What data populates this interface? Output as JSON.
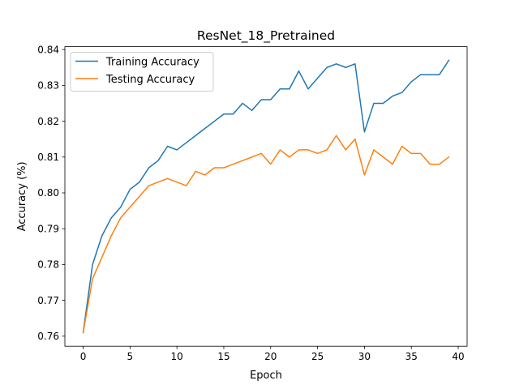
{
  "chart_data": {
    "type": "line",
    "title": "ResNet_18_Pretrained",
    "xlabel": "Epoch",
    "ylabel": "Accuracy (%)",
    "xlim": [
      -1.95,
      40.95
    ],
    "ylim": [
      0.7572,
      0.8408
    ],
    "xticks": [
      0,
      5,
      10,
      15,
      20,
      25,
      30,
      35,
      40
    ],
    "xtick_labels": [
      "0",
      "5",
      "10",
      "15",
      "20",
      "25",
      "30",
      "35",
      "40"
    ],
    "yticks": [
      0.76,
      0.77,
      0.78,
      0.79,
      0.8,
      0.81,
      0.82,
      0.83,
      0.84
    ],
    "ytick_labels": [
      "0.76",
      "0.77",
      "0.78",
      "0.79",
      "0.80",
      "0.81",
      "0.82",
      "0.83",
      "0.84"
    ],
    "grid": false,
    "legend_position": "top-left",
    "x": [
      0,
      1,
      2,
      3,
      4,
      5,
      6,
      7,
      8,
      9,
      10,
      11,
      12,
      13,
      14,
      15,
      16,
      17,
      18,
      19,
      20,
      21,
      22,
      23,
      24,
      25,
      26,
      27,
      28,
      29,
      30,
      31,
      32,
      33,
      34,
      35,
      36,
      37,
      38,
      39
    ],
    "series": [
      {
        "name": "Training Accuracy",
        "color": "#1f77b4",
        "values": [
          0.761,
          0.78,
          0.788,
          0.793,
          0.796,
          0.801,
          0.803,
          0.807,
          0.809,
          0.813,
          0.812,
          0.814,
          0.816,
          0.818,
          0.82,
          0.822,
          0.822,
          0.825,
          0.823,
          0.826,
          0.826,
          0.829,
          0.829,
          0.834,
          0.829,
          0.832,
          0.835,
          0.836,
          0.835,
          0.836,
          0.817,
          0.825,
          0.825,
          0.827,
          0.828,
          0.831,
          0.833,
          0.833,
          0.833,
          0.837
        ]
      },
      {
        "name": "Testing Accuracy",
        "color": "#ff7f0e",
        "values": [
          0.761,
          0.776,
          0.782,
          0.788,
          0.793,
          0.796,
          0.799,
          0.802,
          0.803,
          0.804,
          0.803,
          0.802,
          0.806,
          0.805,
          0.807,
          0.807,
          0.808,
          0.809,
          0.81,
          0.811,
          0.808,
          0.812,
          0.81,
          0.812,
          0.812,
          0.811,
          0.812,
          0.816,
          0.812,
          0.815,
          0.805,
          0.812,
          0.81,
          0.808,
          0.813,
          0.811,
          0.811,
          0.808,
          0.808,
          0.81
        ]
      }
    ]
  }
}
